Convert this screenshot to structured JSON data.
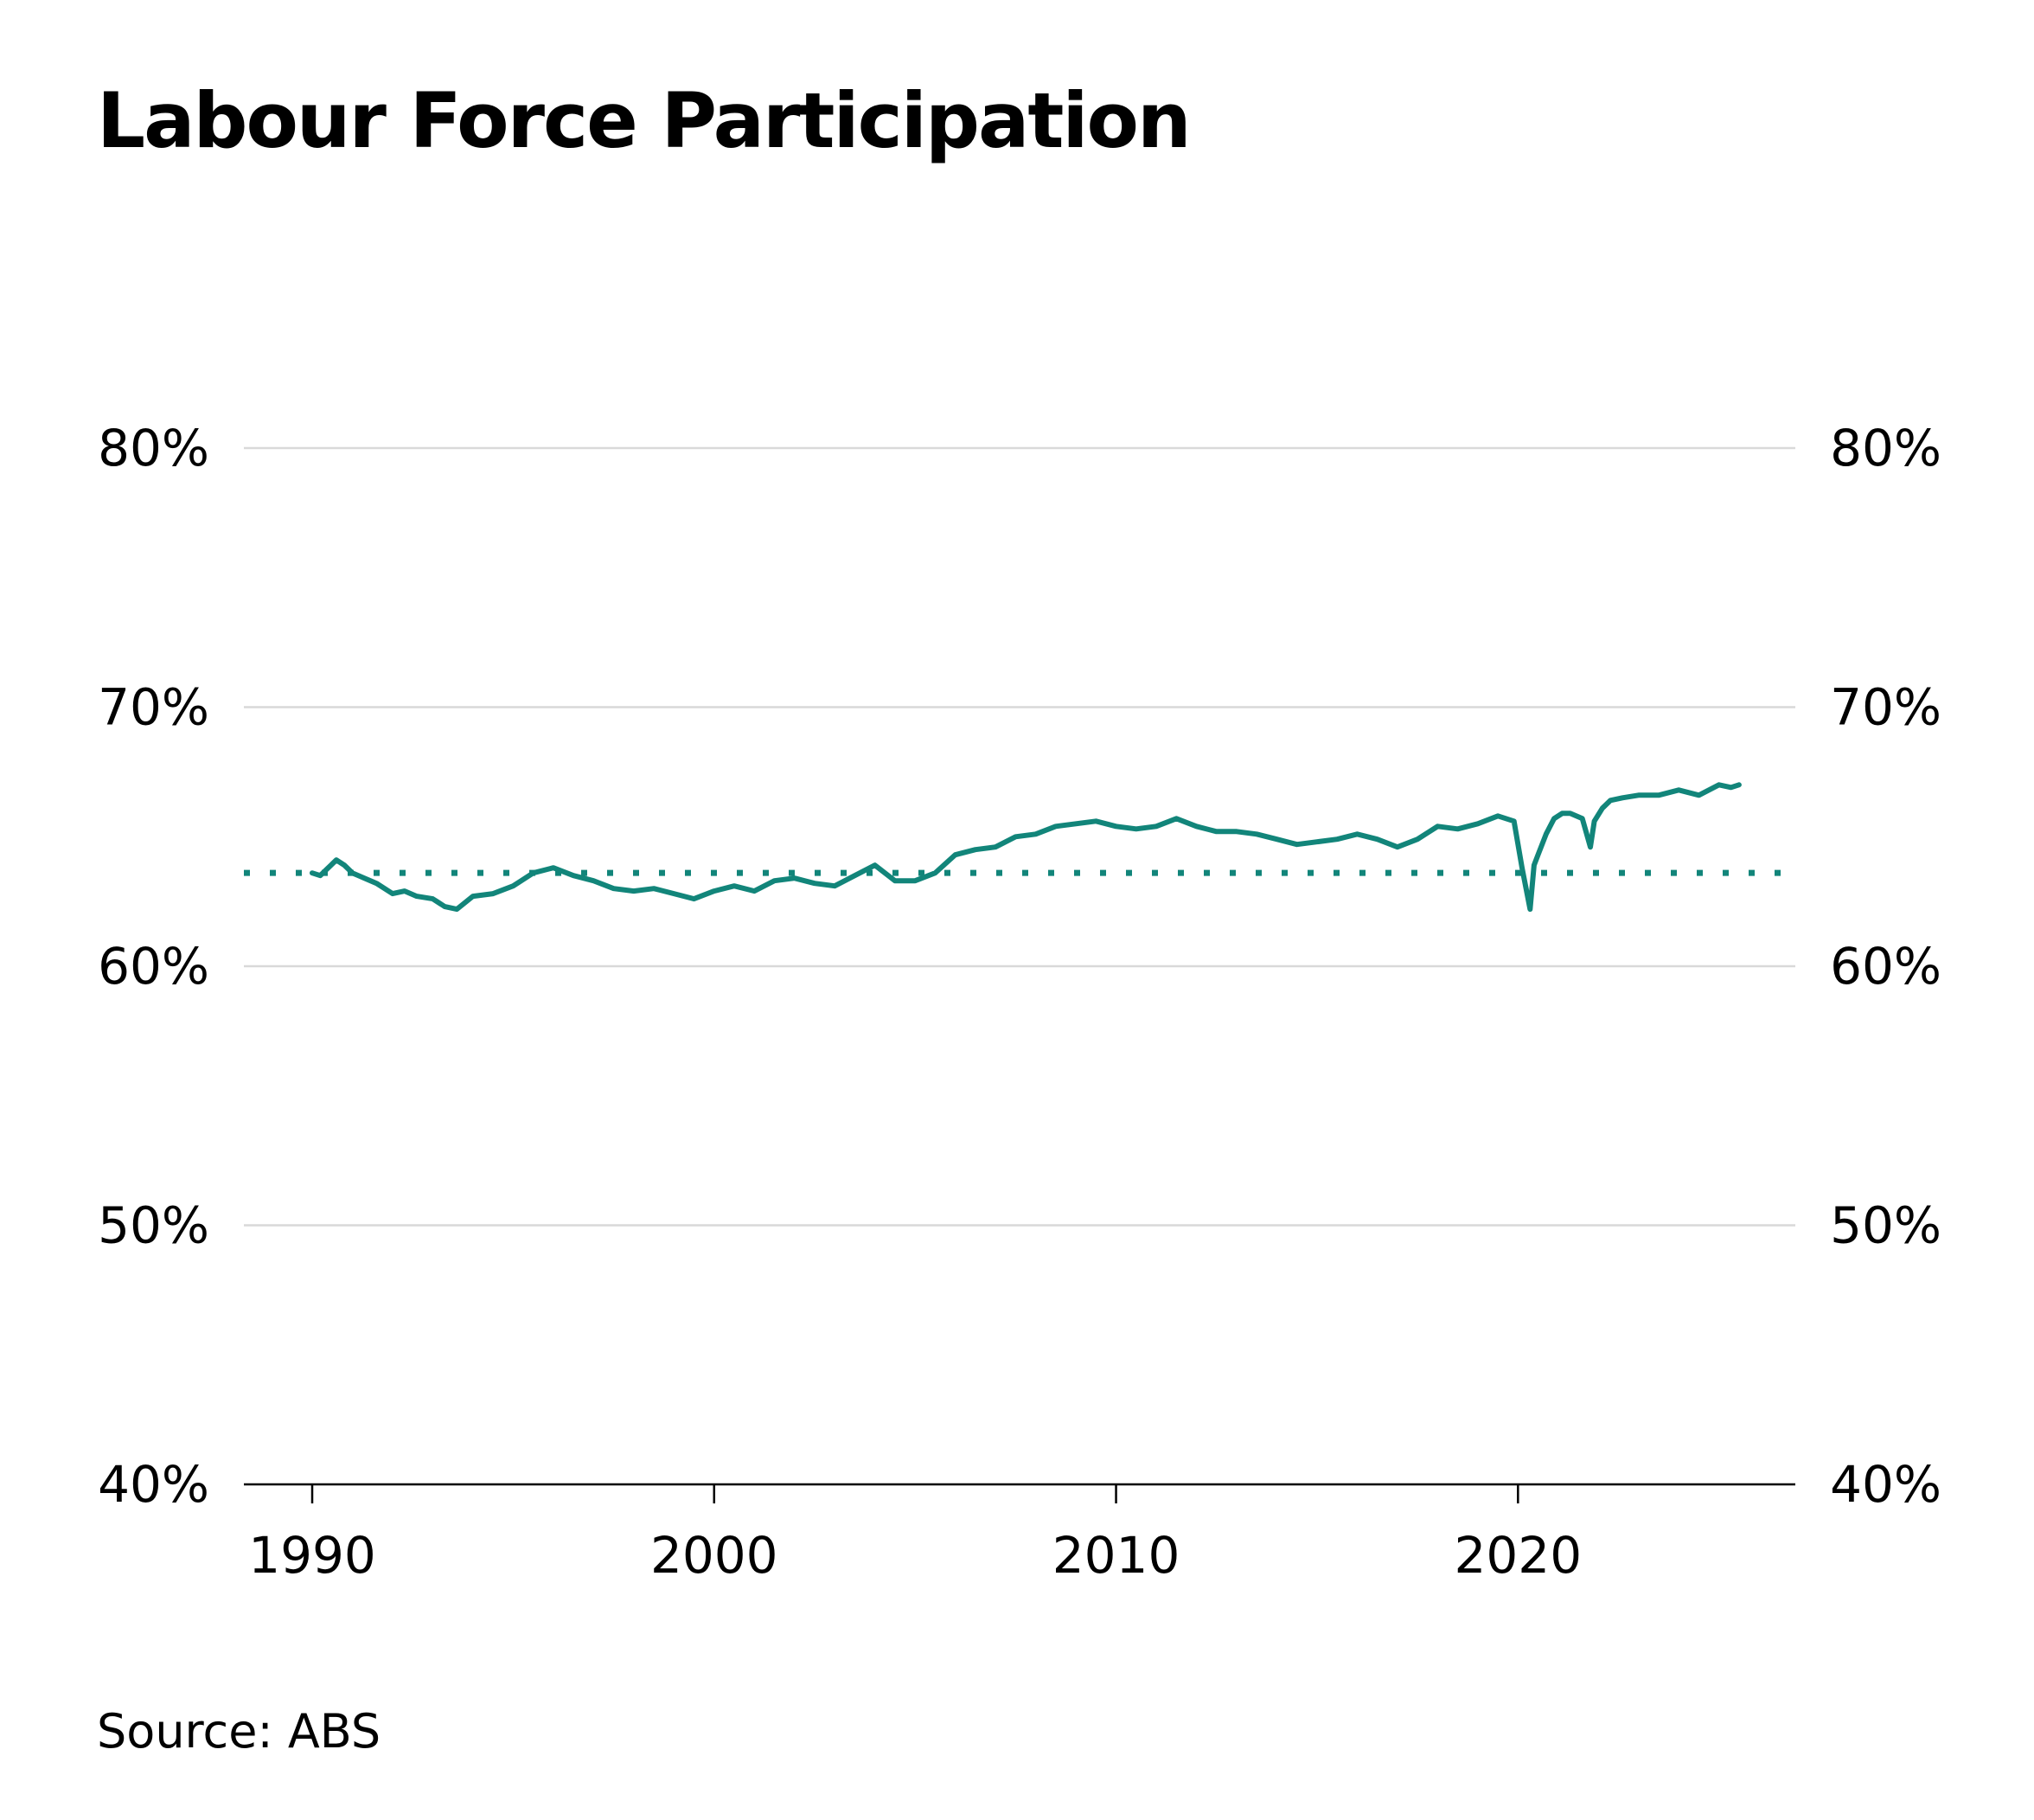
{
  "title": "Labour Force Participation",
  "source": "Source: ABS",
  "colors": {
    "series": "#12857a",
    "grid": "#d9d9d9",
    "axis": "#000000",
    "text": "#000000"
  },
  "chart_data": {
    "type": "line",
    "title": "Labour Force Participation",
    "xlabel": "",
    "ylabel": "",
    "y_unit": "%",
    "ylim": [
      40,
      80
    ],
    "y_ticks": [
      40,
      50,
      60,
      70,
      80
    ],
    "y_tick_labels": [
      "40%",
      "50%",
      "60%",
      "70%",
      "80%"
    ],
    "y_axis_sides": [
      "left",
      "right"
    ],
    "xlim": [
      1988.3,
      2026.9
    ],
    "x_ticks": [
      1990,
      2000,
      2010,
      2020
    ],
    "x_tick_labels": [
      "1990",
      "2000",
      "2010",
      "2020"
    ],
    "grid": "horizontal",
    "legend": "none",
    "reference_line": {
      "style": "dotted",
      "value": 63.6
    },
    "series": [
      {
        "values_x": [
          1990.0,
          1990.2,
          1990.4,
          1990.6,
          1990.8,
          1991.0,
          1991.3,
          1991.6,
          1992.0,
          1992.3,
          1992.6,
          1993.0,
          1993.3,
          1993.6,
          1994.0,
          1994.5,
          1995.0,
          1995.5,
          1996.0,
          1996.5,
          1997.0,
          1997.5,
          1998.0,
          1998.5,
          1999.0,
          1999.5,
          2000.0,
          2000.5,
          2001.0,
          2001.5,
          2002.0,
          2002.5,
          2003.0,
          2003.5,
          2004.0,
          2004.5,
          2005.0,
          2005.5,
          2006.0,
          2006.5,
          2007.0,
          2007.5,
          2008.0,
          2008.5,
          2009.0,
          2009.5,
          2010.0,
          2010.5,
          2011.0,
          2011.5,
          2012.0,
          2012.5,
          2013.0,
          2013.5,
          2014.0,
          2014.5,
          2015.0,
          2015.5,
          2016.0,
          2016.5,
          2017.0,
          2017.5,
          2018.0,
          2018.5,
          2019.0,
          2019.5,
          2019.9,
          2020.1,
          2020.3,
          2020.4,
          2020.5,
          2020.7,
          2020.9,
          2021.1,
          2021.3,
          2021.6,
          2021.8,
          2021.9,
          2022.1,
          2022.3,
          2022.6,
          2023.0,
          2023.5,
          2024.0,
          2024.5,
          2025.0,
          2025.3,
          2025.5
        ],
        "values_y": [
          63.6,
          63.5,
          63.8,
          64.1,
          63.9,
          63.6,
          63.4,
          63.2,
          62.8,
          62.9,
          62.7,
          62.6,
          62.3,
          62.2,
          62.7,
          62.8,
          63.1,
          63.6,
          63.8,
          63.5,
          63.3,
          63.0,
          62.9,
          63.0,
          62.8,
          62.6,
          62.9,
          63.1,
          62.9,
          63.3,
          63.4,
          63.2,
          63.1,
          63.5,
          63.9,
          63.3,
          63.3,
          63.6,
          64.3,
          64.5,
          64.6,
          65.0,
          65.1,
          65.4,
          65.5,
          65.6,
          65.4,
          65.3,
          65.4,
          65.7,
          65.4,
          65.2,
          65.2,
          65.1,
          64.9,
          64.7,
          64.8,
          64.9,
          65.1,
          64.9,
          64.6,
          64.9,
          65.4,
          65.3,
          65.5,
          65.8,
          65.6,
          63.8,
          62.2,
          63.9,
          64.3,
          65.1,
          65.7,
          65.9,
          65.9,
          65.7,
          64.6,
          65.6,
          66.1,
          66.4,
          66.5,
          66.6,
          66.6,
          66.8,
          66.6,
          67.0,
          66.9,
          67.0
        ]
      }
    ]
  }
}
